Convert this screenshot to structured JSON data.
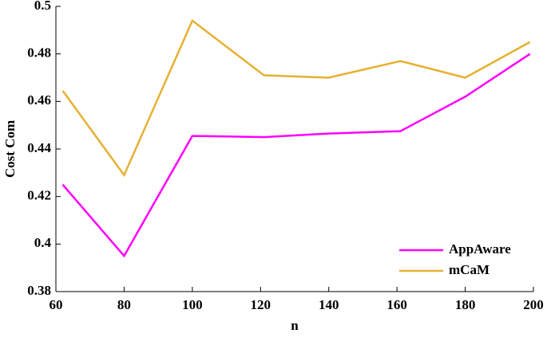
{
  "chart_data": {
    "type": "line",
    "x_label": "n",
    "y_label": "Cost Com",
    "x": [
      62,
      80,
      100,
      121,
      140,
      161,
      180,
      199
    ],
    "series": [
      {
        "name": "AppAware",
        "color": "#ff00ff",
        "values": [
          0.425,
          0.395,
          0.4455,
          0.445,
          0.4465,
          0.4475,
          0.462,
          0.48
        ]
      },
      {
        "name": "mCaM",
        "color": "#e6b030",
        "values": [
          0.4645,
          0.429,
          0.494,
          0.471,
          0.47,
          0.477,
          0.47,
          0.485
        ]
      }
    ],
    "xlim": [
      60,
      200
    ],
    "xticks": [
      60,
      80,
      100,
      120,
      140,
      160,
      180,
      200
    ],
    "ylim": [
      0.38,
      0.5
    ],
    "yticks": [
      0.38,
      0.4,
      0.42,
      0.44,
      0.46,
      0.48,
      0.5
    ],
    "legend": "lower right"
  }
}
